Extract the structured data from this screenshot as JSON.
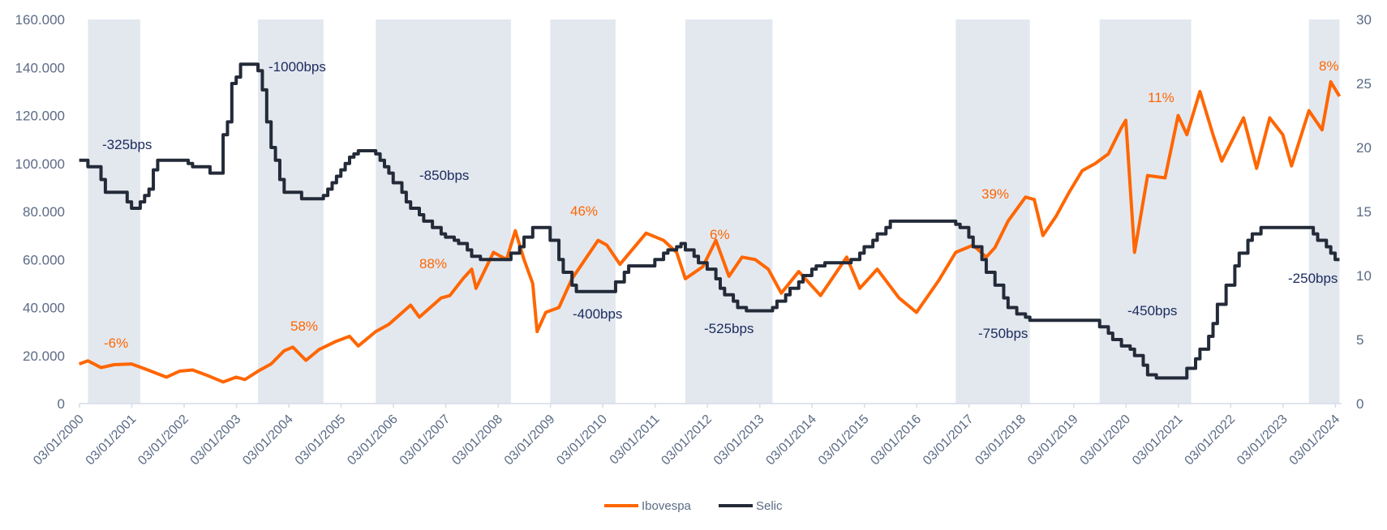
{
  "chart_data": {
    "type": "line",
    "title": "",
    "xlabel": "",
    "ylabel_left": "",
    "ylabel_right": "",
    "x_range": [
      "2000-01-03",
      "2024-02-15"
    ],
    "ylim_left": [
      0,
      160000
    ],
    "ylim_right": [
      0,
      30
    ],
    "grid": false,
    "legend_position": "bottom",
    "left_ticks": [
      "0",
      "20.000",
      "40.000",
      "60.000",
      "80.000",
      "100.000",
      "120.000",
      "140.000",
      "160.000"
    ],
    "right_ticks": [
      "0",
      "5",
      "10",
      "15",
      "20",
      "25",
      "30"
    ],
    "x_ticks": [
      "03/01/2000",
      "03/01/2001",
      "03/01/2002",
      "03/01/2003",
      "03/01/2004",
      "03/01/2005",
      "03/01/2006",
      "03/01/2007",
      "03/01/2008",
      "03/01/2009",
      "03/01/2010",
      "03/01/2011",
      "03/01/2012",
      "03/01/2013",
      "03/01/2014",
      "03/01/2015",
      "03/01/2016",
      "03/01/2017",
      "03/01/2018",
      "03/01/2019",
      "03/01/2020",
      "03/01/2021",
      "03/01/2022",
      "03/01/2023",
      "03/01/2024"
    ],
    "shaded_periods": [
      [
        "2000-03",
        "2001-03"
      ],
      [
        "2003-06",
        "2004-09"
      ],
      [
        "2005-09",
        "2008-04"
      ],
      [
        "2009-01",
        "2010-04"
      ],
      [
        "2011-08",
        "2013-04"
      ],
      [
        "2016-10",
        "2018-03"
      ],
      [
        "2019-07",
        "2021-04"
      ],
      [
        "2023-07",
        "2024-02"
      ]
    ],
    "series": [
      {
        "name": "Ibovespa",
        "axis": "left",
        "color": "#FF6600",
        "points": [
          [
            "2000-01",
            16500
          ],
          [
            "2000-03",
            17800
          ],
          [
            "2000-06",
            15000
          ],
          [
            "2000-09",
            16200
          ],
          [
            "2001-01",
            16500
          ],
          [
            "2001-04",
            14500
          ],
          [
            "2001-09",
            11000
          ],
          [
            "2001-12",
            13500
          ],
          [
            "2002-03",
            14000
          ],
          [
            "2002-06",
            12000
          ],
          [
            "2002-10",
            9000
          ],
          [
            "2003-01",
            11000
          ],
          [
            "2003-03",
            10000
          ],
          [
            "2003-06",
            13500
          ],
          [
            "2003-09",
            16500
          ],
          [
            "2003-12",
            22000
          ],
          [
            "2004-02",
            23500
          ],
          [
            "2004-05",
            18000
          ],
          [
            "2004-08",
            22500
          ],
          [
            "2004-12",
            26000
          ],
          [
            "2005-03",
            28000
          ],
          [
            "2005-05",
            24000
          ],
          [
            "2005-09",
            30000
          ],
          [
            "2005-12",
            33000
          ],
          [
            "2006-05",
            41000
          ],
          [
            "2006-07",
            36000
          ],
          [
            "2006-12",
            44000
          ],
          [
            "2007-02",
            45000
          ],
          [
            "2007-05",
            52000
          ],
          [
            "2007-07",
            56000
          ],
          [
            "2007-08",
            48000
          ],
          [
            "2007-12",
            63000
          ],
          [
            "2008-03",
            60000
          ],
          [
            "2008-05",
            72000
          ],
          [
            "2008-07",
            60000
          ],
          [
            "2008-09",
            50000
          ],
          [
            "2008-10",
            30000
          ],
          [
            "2008-12",
            38000
          ],
          [
            "2009-03",
            40000
          ],
          [
            "2009-06",
            52000
          ],
          [
            "2009-12",
            68000
          ],
          [
            "2010-02",
            66000
          ],
          [
            "2010-05",
            58000
          ],
          [
            "2010-11",
            71000
          ],
          [
            "2011-03",
            68000
          ],
          [
            "2011-06",
            63000
          ],
          [
            "2011-08",
            52000
          ],
          [
            "2011-12",
            57000
          ],
          [
            "2012-03",
            68000
          ],
          [
            "2012-06",
            53000
          ],
          [
            "2012-09",
            61000
          ],
          [
            "2012-12",
            60000
          ],
          [
            "2013-03",
            56000
          ],
          [
            "2013-06",
            46000
          ],
          [
            "2013-10",
            55000
          ],
          [
            "2014-03",
            45000
          ],
          [
            "2014-09",
            61000
          ],
          [
            "2014-12",
            48000
          ],
          [
            "2015-04",
            56000
          ],
          [
            "2015-09",
            44000
          ],
          [
            "2016-01",
            38000
          ],
          [
            "2016-06",
            51000
          ],
          [
            "2016-10",
            63000
          ],
          [
            "2017-02",
            66000
          ],
          [
            "2017-05",
            61000
          ],
          [
            "2017-07",
            65000
          ],
          [
            "2017-10",
            76000
          ],
          [
            "2018-02",
            86000
          ],
          [
            "2018-04",
            85000
          ],
          [
            "2018-06",
            70000
          ],
          [
            "2018-09",
            78000
          ],
          [
            "2018-12",
            88000
          ],
          [
            "2019-03",
            97000
          ],
          [
            "2019-06",
            100000
          ],
          [
            "2019-09",
            104000
          ],
          [
            "2019-12",
            115000
          ],
          [
            "2020-01",
            118000
          ],
          [
            "2020-03",
            63000
          ],
          [
            "2020-06",
            95000
          ],
          [
            "2020-10",
            94000
          ],
          [
            "2021-01",
            120000
          ],
          [
            "2021-03",
            112000
          ],
          [
            "2021-06",
            130000
          ],
          [
            "2021-09",
            112000
          ],
          [
            "2021-11",
            101000
          ],
          [
            "2022-04",
            119000
          ],
          [
            "2022-07",
            98000
          ],
          [
            "2022-10",
            119000
          ],
          [
            "2023-01",
            112000
          ],
          [
            "2023-03",
            99000
          ],
          [
            "2023-07",
            122000
          ],
          [
            "2023-10",
            114000
          ],
          [
            "2023-12",
            134000
          ],
          [
            "2024-02",
            128000
          ]
        ]
      },
      {
        "name": "Selic",
        "axis": "right",
        "color": "#232A38",
        "step": true,
        "points": [
          [
            "2000-01",
            19
          ],
          [
            "2000-03",
            18.5
          ],
          [
            "2000-06",
            17.5
          ],
          [
            "2000-07",
            16.5
          ],
          [
            "2000-12",
            15.75
          ],
          [
            "2001-01",
            15.25
          ],
          [
            "2001-03",
            15.75
          ],
          [
            "2001-04",
            16.25
          ],
          [
            "2001-05",
            16.75
          ],
          [
            "2001-06",
            18.25
          ],
          [
            "2001-07",
            19
          ],
          [
            "2002-02",
            18.75
          ],
          [
            "2002-03",
            18.5
          ],
          [
            "2002-07",
            18
          ],
          [
            "2002-10",
            21
          ],
          [
            "2002-11",
            22
          ],
          [
            "2002-12",
            25
          ],
          [
            "2003-01",
            25.5
          ],
          [
            "2003-02",
            26.5
          ],
          [
            "2003-06",
            26
          ],
          [
            "2003-07",
            24.5
          ],
          [
            "2003-08",
            22
          ],
          [
            "2003-09",
            20
          ],
          [
            "2003-10",
            19
          ],
          [
            "2003-11",
            17.5
          ],
          [
            "2003-12",
            16.5
          ],
          [
            "2004-04",
            16
          ],
          [
            "2004-09",
            16.25
          ],
          [
            "2004-10",
            16.75
          ],
          [
            "2004-11",
            17.25
          ],
          [
            "2004-12",
            17.75
          ],
          [
            "2005-01",
            18.25
          ],
          [
            "2005-02",
            18.75
          ],
          [
            "2005-03",
            19.25
          ],
          [
            "2005-04",
            19.5
          ],
          [
            "2005-05",
            19.75
          ],
          [
            "2005-09",
            19.5
          ],
          [
            "2005-10",
            19
          ],
          [
            "2005-11",
            18.5
          ],
          [
            "2005-12",
            18
          ],
          [
            "2006-01",
            17.25
          ],
          [
            "2006-03",
            16.5
          ],
          [
            "2006-04",
            15.75
          ],
          [
            "2006-05",
            15.25
          ],
          [
            "2006-07",
            14.75
          ],
          [
            "2006-08",
            14.25
          ],
          [
            "2006-10",
            13.75
          ],
          [
            "2006-12",
            13.25
          ],
          [
            "2007-01",
            13
          ],
          [
            "2007-03",
            12.75
          ],
          [
            "2007-04",
            12.5
          ],
          [
            "2007-06",
            12
          ],
          [
            "2007-07",
            11.5
          ],
          [
            "2007-09",
            11.25
          ],
          [
            "2008-04",
            11.75
          ],
          [
            "2008-06",
            12.25
          ],
          [
            "2008-07",
            13
          ],
          [
            "2008-09",
            13.75
          ],
          [
            "2009-01",
            12.75
          ],
          [
            "2009-03",
            11.25
          ],
          [
            "2009-04",
            10.25
          ],
          [
            "2009-06",
            9.25
          ],
          [
            "2009-07",
            8.75
          ],
          [
            "2010-04",
            9.5
          ],
          [
            "2010-06",
            10.25
          ],
          [
            "2010-07",
            10.75
          ],
          [
            "2011-01",
            11.25
          ],
          [
            "2011-03",
            11.75
          ],
          [
            "2011-04",
            12
          ],
          [
            "2011-06",
            12.25
          ],
          [
            "2011-07",
            12.5
          ],
          [
            "2011-08",
            12
          ],
          [
            "2011-10",
            11.5
          ],
          [
            "2011-11",
            11
          ],
          [
            "2012-01",
            10.5
          ],
          [
            "2012-03",
            9.75
          ],
          [
            "2012-04",
            9
          ],
          [
            "2012-05",
            8.5
          ],
          [
            "2012-07",
            8
          ],
          [
            "2012-08",
            7.5
          ],
          [
            "2012-10",
            7.25
          ],
          [
            "2013-04",
            7.5
          ],
          [
            "2013-05",
            8
          ],
          [
            "2013-07",
            8.5
          ],
          [
            "2013-08",
            9
          ],
          [
            "2013-10",
            9.5
          ],
          [
            "2013-11",
            10
          ],
          [
            "2014-01",
            10.5
          ],
          [
            "2014-02",
            10.75
          ],
          [
            "2014-04",
            11
          ],
          [
            "2014-10",
            11.25
          ],
          [
            "2014-12",
            11.75
          ],
          [
            "2015-01",
            12.25
          ],
          [
            "2015-03",
            12.75
          ],
          [
            "2015-04",
            13.25
          ],
          [
            "2015-06",
            13.75
          ],
          [
            "2015-07",
            14.25
          ],
          [
            "2016-10",
            14
          ],
          [
            "2016-11",
            13.75
          ],
          [
            "2017-01",
            13
          ],
          [
            "2017-02",
            12.25
          ],
          [
            "2017-04",
            11.25
          ],
          [
            "2017-05",
            10.25
          ],
          [
            "2017-07",
            9.25
          ],
          [
            "2017-09",
            8.25
          ],
          [
            "2017-10",
            7.5
          ],
          [
            "2017-12",
            7
          ],
          [
            "2018-02",
            6.75
          ],
          [
            "2018-03",
            6.5
          ],
          [
            "2019-07",
            6
          ],
          [
            "2019-09",
            5.5
          ],
          [
            "2019-10",
            5
          ],
          [
            "2019-12",
            4.5
          ],
          [
            "2020-02",
            4.25
          ],
          [
            "2020-03",
            3.75
          ],
          [
            "2020-05",
            3
          ],
          [
            "2020-06",
            2.25
          ],
          [
            "2020-08",
            2
          ],
          [
            "2021-03",
            2.75
          ],
          [
            "2021-05",
            3.5
          ],
          [
            "2021-06",
            4.25
          ],
          [
            "2021-08",
            5.25
          ],
          [
            "2021-09",
            6.25
          ],
          [
            "2021-10",
            7.75
          ],
          [
            "2021-12",
            9.25
          ],
          [
            "2022-02",
            10.75
          ],
          [
            "2022-03",
            11.75
          ],
          [
            "2022-05",
            12.75
          ],
          [
            "2022-06",
            13.25
          ],
          [
            "2022-08",
            13.75
          ],
          [
            "2023-08",
            13.25
          ],
          [
            "2023-09",
            12.75
          ],
          [
            "2023-11",
            12.25
          ],
          [
            "2023-12",
            11.75
          ],
          [
            "2024-01",
            11.25
          ],
          [
            "2024-02",
            11.25
          ]
        ]
      }
    ],
    "annotations": [
      {
        "text": "-6%",
        "series": "Ibovespa"
      },
      {
        "text": "58%",
        "series": "Ibovespa"
      },
      {
        "text": "88%",
        "series": "Ibovespa"
      },
      {
        "text": "46%",
        "series": "Ibovespa"
      },
      {
        "text": "6%",
        "series": "Ibovespa"
      },
      {
        "text": "39%",
        "series": "Ibovespa"
      },
      {
        "text": "11%",
        "series": "Ibovespa"
      },
      {
        "text": "8%",
        "series": "Ibovespa"
      },
      {
        "text": "-325bps",
        "series": "Selic"
      },
      {
        "text": "-1000bps",
        "series": "Selic"
      },
      {
        "text": "-850bps",
        "series": "Selic"
      },
      {
        "text": "-400bps",
        "series": "Selic"
      },
      {
        "text": "-525bps",
        "series": "Selic"
      },
      {
        "text": "-750bps",
        "series": "Selic"
      },
      {
        "text": "-450bps",
        "series": "Selic"
      },
      {
        "text": "-250bps",
        "series": "Selic"
      }
    ],
    "colors": {
      "band": "#E3E8EF",
      "axis": "#D5DCE6",
      "tick_text": "#5B6B85",
      "selic_annotation": "#1B2A5C",
      "ibov_annotation": "#FF6600"
    }
  },
  "legend": [
    {
      "label": "Ibovespa",
      "color": "#FF6600"
    },
    {
      "label": "Selic",
      "color": "#232A38"
    }
  ]
}
